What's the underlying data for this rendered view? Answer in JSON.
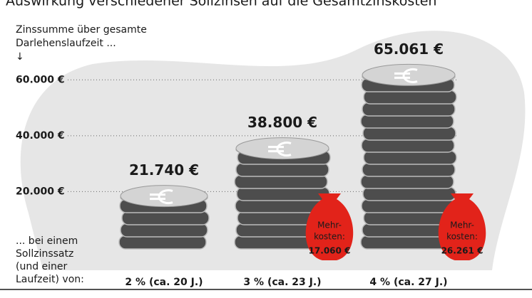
{
  "chart_data": {
    "type": "coin-stack",
    "title": "Auswirkung verschiedener Sollzinsen auf die Gesamtzinskosten",
    "y_label": [
      "Zinssumme über gesamte",
      "Darlehenslaufzeit ...",
      "↓"
    ],
    "x_label": [
      "... bei einem",
      "Sollzinssatz",
      "(und einer",
      "Laufzeit) von:"
    ],
    "categories": [
      "2 % (ca. 20 J.)",
      "3 % (ca. 23 J.)",
      "4 % (ca. 27 J.)"
    ],
    "values": [
      21740,
      38800,
      65061
    ],
    "value_labels": [
      "21.740 €",
      "38.800 €",
      "65.061 €"
    ],
    "label_color": "#e2231a",
    "surcharge": {
      "label": [
        "Mehr-",
        "kosten:"
      ],
      "values": [
        null,
        17060,
        26261
      ],
      "value_labels": [
        null,
        "17.060 €",
        "26.261 €"
      ],
      "color": "#e2231a"
    },
    "ylim": [
      0,
      70000
    ],
    "yticks": [
      {
        "value": 20000,
        "label": "20.000 €"
      },
      {
        "value": 40000,
        "label": "40.000 €"
      },
      {
        "value": 60000,
        "label": "60.000 €"
      }
    ],
    "grid": true
  }
}
